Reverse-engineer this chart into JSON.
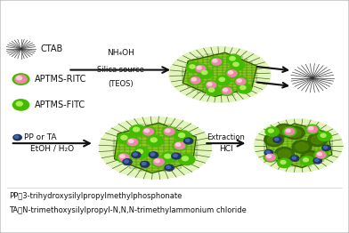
{
  "bg_color": "#e8e8e8",
  "panel_bg": "#ffffff",
  "msn_halo": "#ccee88",
  "msn_green_light": "#88cc22",
  "msn_green_med": "#66aa10",
  "msn_green_dark": "#2a5500",
  "pink_outer": "#ee88aa",
  "pink_inner": "#ffaabb",
  "pink_hi": "#ffccdd",
  "green_ball_outer": "#44bb00",
  "green_ball_inner": "#66dd11",
  "green_ball_hi": "#aaee55",
  "blue_ball": "#223366",
  "blue_ball_hi": "#4466aa",
  "ctab_color": "#555555",
  "arrow_color": "#111111",
  "text_color": "#111111",
  "legend_ctab": "CTAB",
  "legend_ritc": "APTMS-RITC",
  "legend_fitc": "APTMS-FITC",
  "step1_line1": "NH₄OH",
  "step1_line2": "Silica source",
  "step1_line3": "(TEOS)",
  "step2_line1": "EtOH / H₂O",
  "step2_line2": "●  PP or TA",
  "step3_line1": "HCl",
  "step3_line2": "Extraction",
  "footnote1": "PP：3-trihydroxysilylpropylmethylphosphonate",
  "footnote2": "TA：N-trimethoxysilylpropyl-N,N,N-trimethylammonium chloride"
}
